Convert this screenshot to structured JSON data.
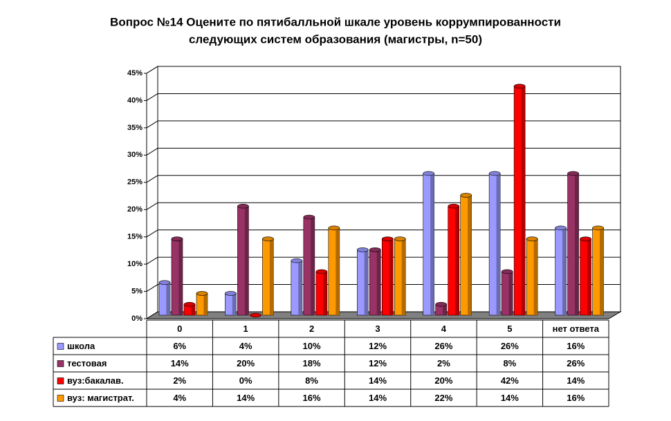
{
  "chart_data": {
    "type": "bar",
    "title": [
      "Вопрос №14 Оцените по пятибалльной шкале уровень коррумпированности",
      "следующих систем образования (магистры, n=50)"
    ],
    "categories": [
      "0",
      "1",
      "2",
      "3",
      "4",
      "5",
      "нет ответа"
    ],
    "series": [
      {
        "name": "школа",
        "color": "#9999ff",
        "values": [
          6,
          4,
          10,
          12,
          26,
          26,
          16
        ],
        "value_labels": [
          "6%",
          "4%",
          "10%",
          "12%",
          "26%",
          "26%",
          "16%"
        ]
      },
      {
        "name": "тестовая",
        "color": "#993366",
        "values": [
          14,
          20,
          18,
          12,
          2,
          8,
          26
        ],
        "value_labels": [
          "14%",
          "20%",
          "18%",
          "12%",
          "2%",
          "8%",
          "26%"
        ]
      },
      {
        "name": "вуз:бакалав.",
        "color": "#ff0000",
        "values": [
          2,
          0,
          8,
          14,
          20,
          42,
          14
        ],
        "value_labels": [
          "2%",
          "0%",
          "8%",
          "14%",
          "20%",
          "42%",
          "14%"
        ]
      },
      {
        "name": "вуз: магистрат.",
        "color": "#ff9900",
        "values": [
          4,
          14,
          16,
          14,
          22,
          14,
          16
        ],
        "value_labels": [
          "4%",
          "14%",
          "16%",
          "14%",
          "22%",
          "14%",
          "16%"
        ]
      }
    ],
    "ylim": [
      0,
      45
    ],
    "yticks": [
      {
        "value": 0,
        "label": "0%"
      },
      {
        "value": 5,
        "label": "5%"
      },
      {
        "value": 10,
        "label": "10%"
      },
      {
        "value": 15,
        "label": "15%"
      },
      {
        "value": 20,
        "label": "20%"
      },
      {
        "value": 25,
        "label": "25%"
      },
      {
        "value": 30,
        "label": "30%"
      },
      {
        "value": 35,
        "label": "35%"
      },
      {
        "value": 40,
        "label": "40%"
      },
      {
        "value": 45,
        "label": "45%"
      }
    ],
    "grid": true
  }
}
